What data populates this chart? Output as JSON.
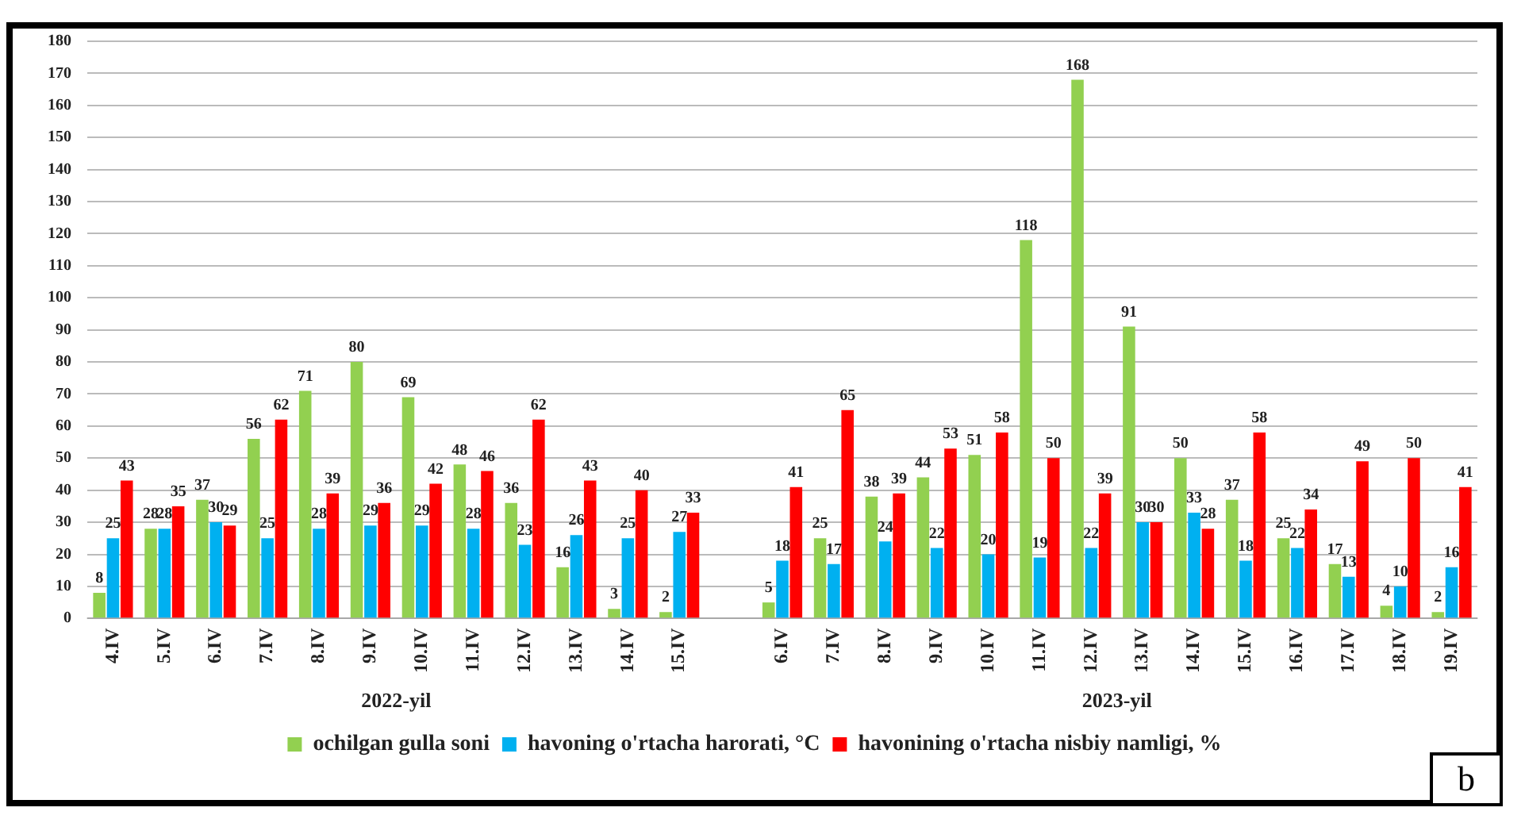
{
  "chart_data": {
    "type": "bar",
    "categories": [
      "4.IV",
      "5.IV",
      "6.IV",
      "7.IV",
      "8.IV",
      "9.IV",
      "10.IV",
      "11.IV",
      "12.IV",
      "13.IV",
      "14.IV",
      "15.IV",
      null,
      "6.IV",
      "7.IV",
      "8.IV",
      "9.IV",
      "10.IV",
      "11.IV",
      "12.IV",
      "13.IV",
      "14.IV",
      "15.IV",
      "16.IV",
      "17.IV",
      "18.IV",
      "19.IV"
    ],
    "series": [
      {
        "name": "ochilgan gulla soni",
        "color": "#92d050",
        "values": [
          8,
          28,
          37,
          56,
          71,
          80,
          69,
          48,
          36,
          16,
          3,
          2,
          null,
          5,
          25,
          38,
          44,
          51,
          118,
          168,
          91,
          50,
          37,
          25,
          17,
          4,
          2
        ]
      },
      {
        "name": "havoning o'rtacha harorati, °C",
        "color": "#00b0f0",
        "values": [
          25,
          28,
          30,
          25,
          28,
          29,
          29,
          28,
          23,
          26,
          25,
          27,
          null,
          18,
          17,
          24,
          22,
          20,
          19,
          22,
          30,
          33,
          18,
          22,
          13,
          10,
          16
        ]
      },
      {
        "name": "havonining o'rtacha nisbiy namligi, %",
        "color": "#ff0000",
        "values": [
          43,
          35,
          29,
          62,
          39,
          36,
          42,
          46,
          62,
          43,
          40,
          33,
          null,
          41,
          65,
          39,
          53,
          58,
          50,
          39,
          30,
          28,
          58,
          34,
          49,
          50,
          41
        ]
      }
    ],
    "ylim": [
      0,
      180
    ],
    "yticks": [
      0,
      10,
      20,
      30,
      40,
      50,
      60,
      70,
      80,
      90,
      100,
      110,
      120,
      130,
      140,
      150,
      160,
      170,
      180
    ],
    "grid": "y",
    "legend": "bottom",
    "data_labels": true,
    "annotations": [
      "2022-yil",
      "2023-yil",
      "b"
    ]
  }
}
